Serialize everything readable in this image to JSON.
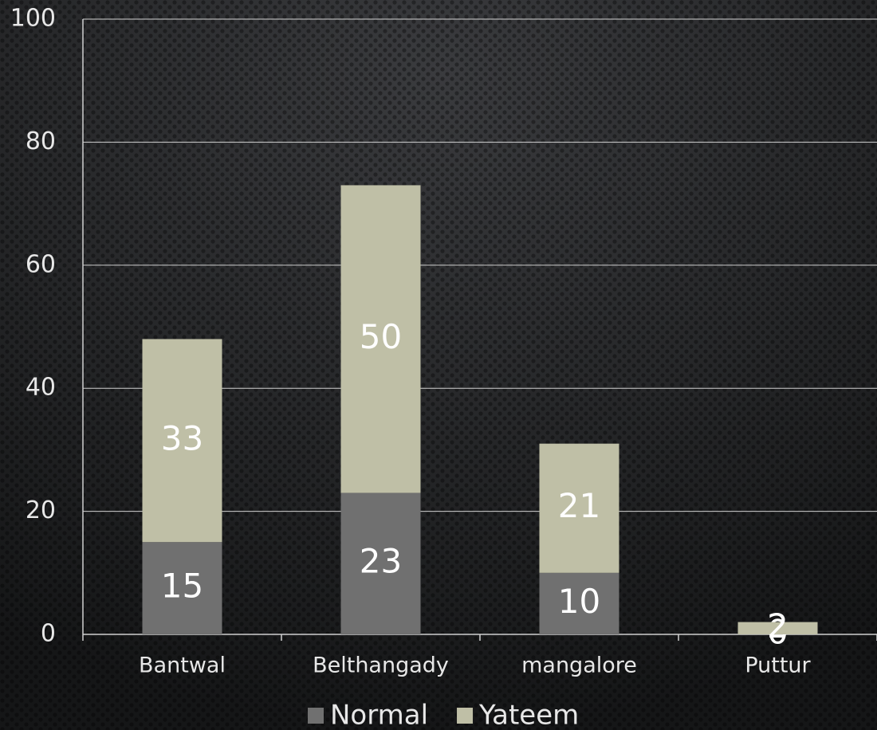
{
  "chart_data": {
    "type": "stacked_bar",
    "categories": [
      "Bantwal",
      "Belthangady",
      "mangalore",
      "Puttur"
    ],
    "series": [
      {
        "name": "Normal",
        "color": "#707070",
        "values": [
          15,
          23,
          10,
          0
        ]
      },
      {
        "name": "Yateem",
        "color": "#bfbfa6",
        "values": [
          33,
          50,
          21,
          2
        ]
      }
    ],
    "ylim": [
      0,
      100
    ],
    "yticks": [
      0,
      20,
      40,
      60,
      80,
      100
    ],
    "grid": true,
    "legend": "bottom"
  }
}
